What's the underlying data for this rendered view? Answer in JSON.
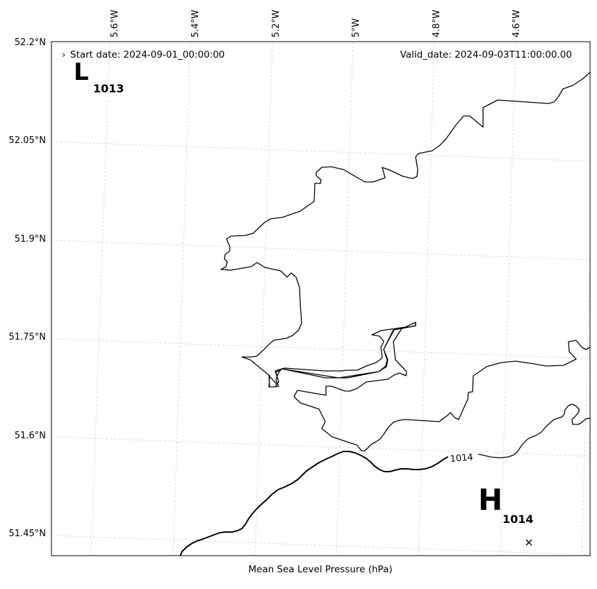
{
  "header": {
    "start_date": "Start date: 2024-09-01_00:00:00",
    "valid_date": "Valid_date: 2024-09-03T11:00:00.00"
  },
  "caption": "Mean Sea Level Pressure (hPa)",
  "lon_labels": [
    "5.6°W",
    "5.4°W",
    "5.2°W",
    "5°W",
    "4.8°W",
    "4.6°W"
  ],
  "lat_labels": [
    "52.2°N",
    "52.05°N",
    "51.9°N",
    "51.75°N",
    "51.6°N",
    "51.45°N"
  ],
  "pressure_centres": [
    {
      "type": "low",
      "symbol": "L",
      "value": "1013"
    },
    {
      "type": "high",
      "symbol": "H",
      "value": "1014"
    }
  ],
  "contours": [
    {
      "label": "1014"
    }
  ]
}
